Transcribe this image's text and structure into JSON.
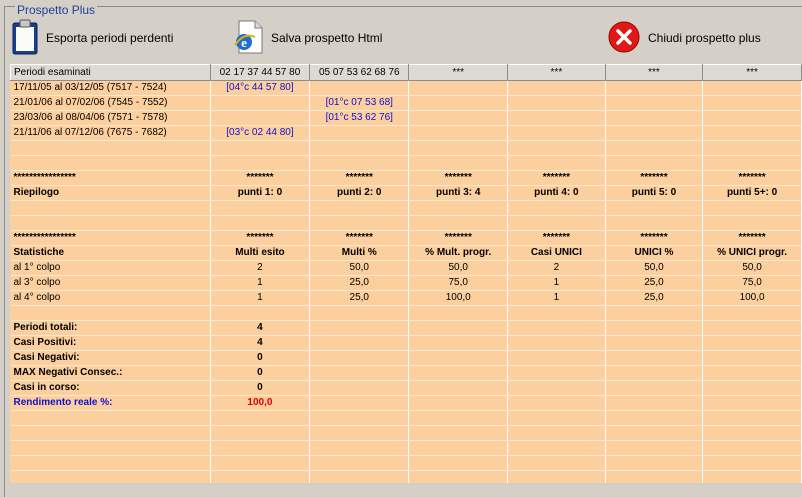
{
  "window_title": "Prospetto Plus",
  "toolbar": {
    "export_label": "Esporta periodi perdenti",
    "save_label": "Salva prospetto Html",
    "close_label": "Chiudi prospetto plus"
  },
  "header": [
    "Periodi esaminati",
    "02 17 37 44 57 80",
    "05 07 53 62 68 76",
    "***",
    "***",
    "***",
    "***"
  ],
  "periods": [
    [
      "17/11/05 al 03/12/05  (7517 - 7524)",
      "[04°c 44 57 80]",
      "",
      "",
      "",
      "",
      ""
    ],
    [
      "21/01/06 al 07/02/06  (7545 - 7552)",
      "",
      "[01°c 07 53 68]",
      "",
      "",
      "",
      ""
    ],
    [
      "23/03/06 al 08/04/06  (7571 - 7578)",
      "",
      "[01°c 53 62 76]",
      "",
      "",
      "",
      ""
    ],
    [
      "21/11/06 al 07/12/06  (7675 - 7682)",
      "[03°c 02 44 80]",
      "",
      "",
      "",
      "",
      ""
    ]
  ],
  "separator": [
    "****************",
    "*******",
    "*******",
    "*******",
    "*******",
    "*******",
    "*******"
  ],
  "riepilogo": [
    "Riepilogo",
    "punti 1: 0",
    "punti 2: 0",
    "punti 3: 4",
    "punti 4: 0",
    "punti 5: 0",
    "punti 5+: 0"
  ],
  "stats_header": [
    "Statistiche",
    "Multi esito",
    "Multi %",
    "% Mult. progr.",
    "Casi UNICI",
    "UNICI %",
    "% UNICI progr."
  ],
  "stats": [
    [
      "al 1° colpo",
      "2",
      "50,0",
      "50,0",
      "2",
      "50,0",
      "50,0"
    ],
    [
      "al 3° colpo",
      "1",
      "25,0",
      "75,0",
      "1",
      "25,0",
      "75,0"
    ],
    [
      "al 4° colpo",
      "1",
      "25,0",
      "100,0",
      "1",
      "25,0",
      "100,0"
    ]
  ],
  "totals": [
    [
      "Periodi totali:",
      "4"
    ],
    [
      "Casi Positivi:",
      "4"
    ],
    [
      "Casi Negativi:",
      "0"
    ],
    [
      "MAX Negativi Consec.:",
      "0"
    ],
    [
      "Casi in corso:",
      "0"
    ]
  ],
  "rendimento": [
    "Rendimento reale %:",
    "100,0"
  ],
  "colors": {
    "grid_bg": "#fccf9e",
    "blue": "#1010d0",
    "red": "#e00000"
  },
  "icons": [
    "clipboard-icon",
    "internet-explorer-icon",
    "close-circle-icon"
  ]
}
